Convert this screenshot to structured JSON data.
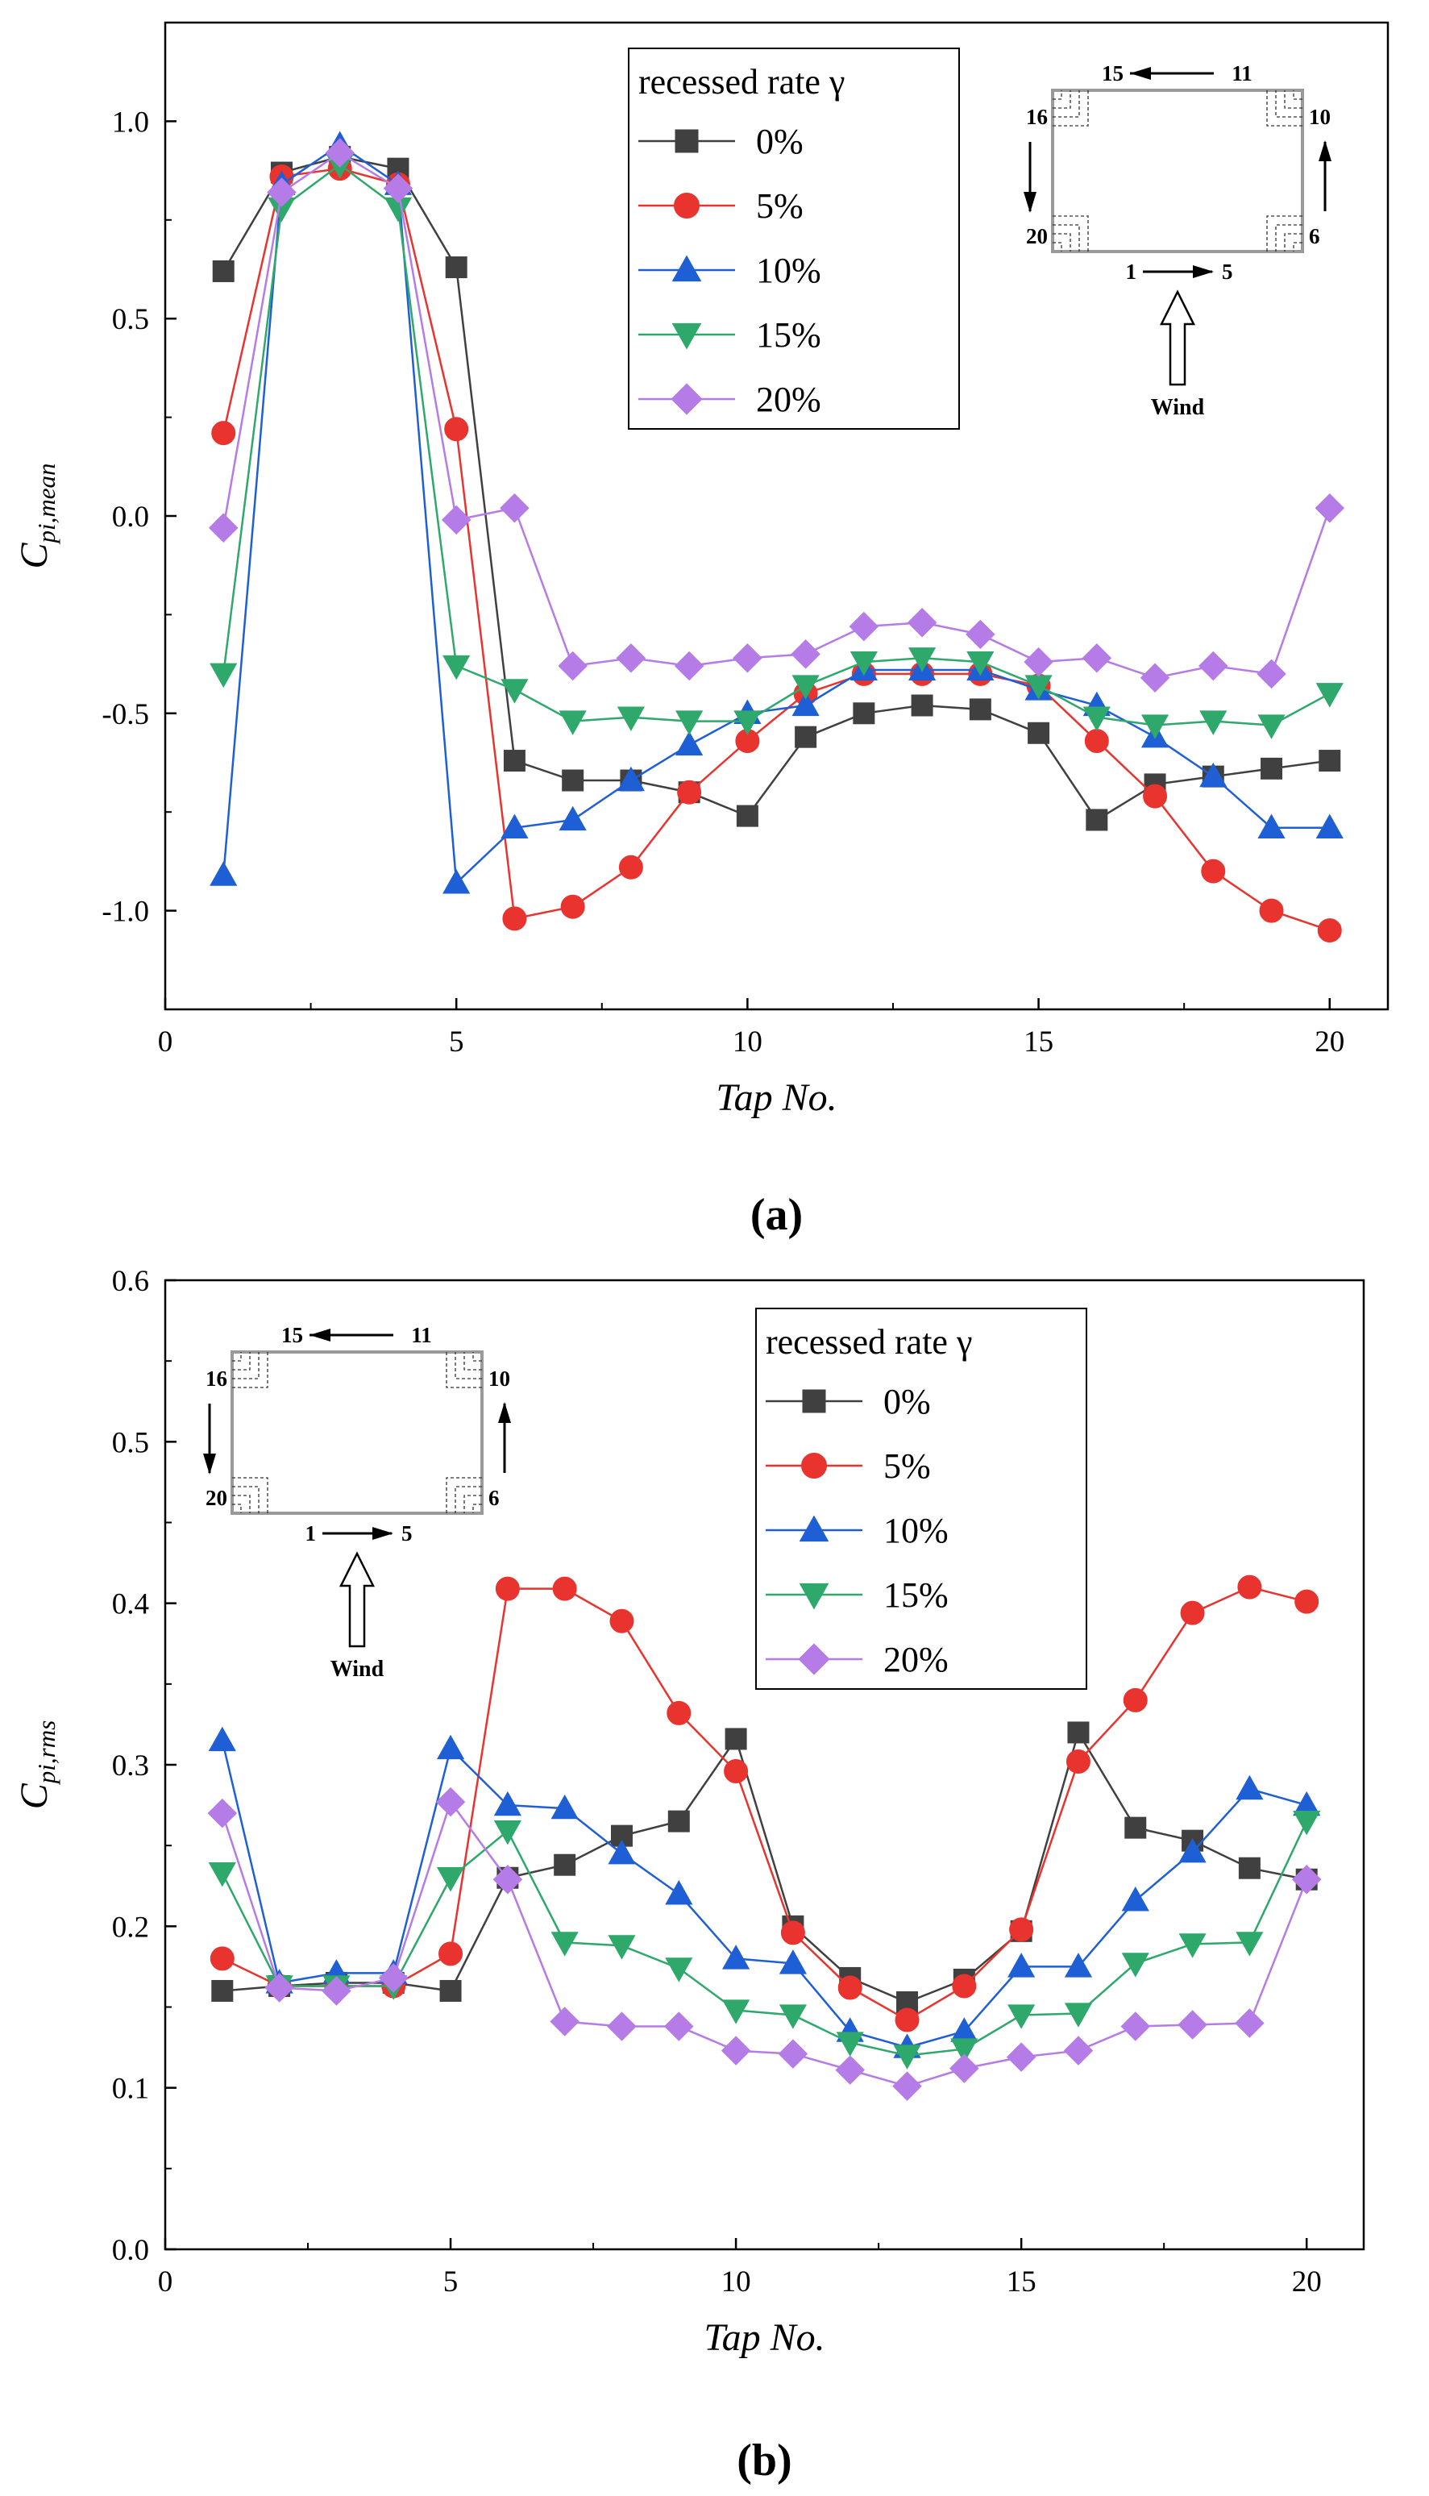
{
  "chart_data": [
    {
      "type": "line",
      "panel_label": "(a)",
      "xlabel": "Tap No.",
      "ylabel_main": "C",
      "ylabel_sub": "pi,mean",
      "xlim": [
        0,
        21
      ],
      "ylim": [
        -1.25,
        1.25
      ],
      "xticks": [
        0,
        5,
        10,
        15,
        20
      ],
      "xtick_labels": [
        "0",
        "5",
        "10",
        "15",
        "20"
      ],
      "yticks": [
        -1.0,
        -0.5,
        0.0,
        0.5,
        1.0
      ],
      "ytick_labels": [
        "-1.0",
        "-0.5",
        "0.0",
        "0.5",
        "1.0"
      ],
      "legend_title": "recessed rate γ",
      "legend_position": "top-center",
      "inset_position": "top-right",
      "x": [
        1,
        2,
        3,
        4,
        5,
        6,
        7,
        8,
        9,
        10,
        11,
        12,
        13,
        14,
        15,
        16,
        17,
        18,
        19,
        20
      ],
      "series": [
        {
          "name": "0%",
          "color": "#404040",
          "marker": "square",
          "values": [
            0.62,
            0.87,
            0.91,
            0.88,
            0.63,
            -0.62,
            -0.67,
            -0.67,
            -0.7,
            -0.76,
            -0.56,
            -0.5,
            -0.48,
            -0.49,
            -0.55,
            -0.77,
            -0.68,
            -0.66,
            -0.64,
            -0.62
          ]
        },
        {
          "name": "5%",
          "color": "#e8332e",
          "marker": "circle",
          "values": [
            0.21,
            0.86,
            0.88,
            0.84,
            0.22,
            -1.02,
            -0.99,
            -0.89,
            -0.7,
            -0.57,
            -0.45,
            -0.4,
            -0.4,
            -0.4,
            -0.43,
            -0.57,
            -0.71,
            -0.9,
            -1.0,
            -1.05
          ]
        },
        {
          "name": "10%",
          "color": "#1f5fd6",
          "marker": "triangle-up",
          "values": [
            -0.91,
            0.84,
            0.94,
            0.84,
            -0.93,
            -0.79,
            -0.77,
            -0.67,
            -0.58,
            -0.5,
            -0.48,
            -0.39,
            -0.39,
            -0.39,
            -0.44,
            -0.48,
            -0.56,
            -0.66,
            -0.79,
            -0.79
          ]
        },
        {
          "name": "15%",
          "color": "#2ea86b",
          "marker": "triangle-down",
          "values": [
            -0.4,
            0.78,
            0.89,
            0.78,
            -0.38,
            -0.44,
            -0.52,
            -0.51,
            -0.52,
            -0.52,
            -0.43,
            -0.37,
            -0.36,
            -0.37,
            -0.43,
            -0.51,
            -0.53,
            -0.52,
            -0.53,
            -0.45
          ]
        },
        {
          "name": "20%",
          "color": "#b57be6",
          "marker": "diamond",
          "values": [
            -0.03,
            0.82,
            0.92,
            0.83,
            -0.01,
            0.02,
            -0.38,
            -0.36,
            -0.38,
            -0.36,
            -0.35,
            -0.28,
            -0.27,
            -0.3,
            -0.37,
            -0.36,
            -0.41,
            -0.38,
            -0.4,
            0.02
          ]
        }
      ]
    },
    {
      "type": "line",
      "panel_label": "(b)",
      "xlabel": "Tap No.",
      "ylabel_main": "C",
      "ylabel_sub": "pi,rms",
      "xlim": [
        0,
        21
      ],
      "ylim": [
        0.0,
        0.6
      ],
      "xticks": [
        0,
        5,
        10,
        15,
        20
      ],
      "xtick_labels": [
        "0",
        "5",
        "10",
        "15",
        "20"
      ],
      "yticks": [
        0.0,
        0.1,
        0.2,
        0.3,
        0.4,
        0.5,
        0.6
      ],
      "ytick_labels": [
        "0.0",
        "0.1",
        "0.2",
        "0.3",
        "0.4",
        "0.5",
        "0.6"
      ],
      "legend_title": "recessed rate γ",
      "legend_position": "top-right",
      "inset_position": "top-left",
      "x": [
        1,
        2,
        3,
        4,
        5,
        6,
        7,
        8,
        9,
        10,
        11,
        12,
        13,
        14,
        15,
        16,
        17,
        18,
        19,
        20
      ],
      "series": [
        {
          "name": "0%",
          "color": "#404040",
          "marker": "square",
          "values": [
            0.16,
            0.163,
            0.165,
            0.165,
            0.16,
            0.23,
            0.238,
            0.256,
            0.265,
            0.316,
            0.2,
            0.168,
            0.153,
            0.167,
            0.197,
            0.32,
            0.261,
            0.253,
            0.236,
            0.229
          ]
        },
        {
          "name": "5%",
          "color": "#e8332e",
          "marker": "circle",
          "values": [
            0.18,
            0.163,
            0.163,
            0.163,
            0.183,
            0.409,
            0.409,
            0.389,
            0.332,
            0.296,
            0.196,
            0.162,
            0.142,
            0.163,
            0.198,
            0.302,
            0.34,
            0.394,
            0.41,
            0.401
          ]
        },
        {
          "name": "10%",
          "color": "#1f5fd6",
          "marker": "triangle-up",
          "values": [
            0.315,
            0.165,
            0.171,
            0.171,
            0.31,
            0.275,
            0.273,
            0.245,
            0.22,
            0.18,
            0.177,
            0.135,
            0.125,
            0.135,
            0.175,
            0.175,
            0.216,
            0.246,
            0.285,
            0.275
          ]
        },
        {
          "name": "15%",
          "color": "#2ea86b",
          "marker": "triangle-down",
          "values": [
            0.233,
            0.163,
            0.163,
            0.163,
            0.23,
            0.259,
            0.19,
            0.188,
            0.174,
            0.148,
            0.145,
            0.128,
            0.12,
            0.124,
            0.145,
            0.146,
            0.177,
            0.189,
            0.19,
            0.265
          ]
        },
        {
          "name": "20%",
          "color": "#b57be6",
          "marker": "diamond",
          "values": [
            0.27,
            0.162,
            0.16,
            0.168,
            0.277,
            0.229,
            0.141,
            0.138,
            0.138,
            0.123,
            0.121,
            0.111,
            0.101,
            0.112,
            0.119,
            0.123,
            0.138,
            0.139,
            0.14,
            0.229
          ]
        }
      ]
    }
  ],
  "inset": {
    "top_label_left": "15",
    "top_label_right": "11",
    "left_label_top": "16",
    "left_label_bottom": "20",
    "right_label_top": "10",
    "right_label_bottom": "6",
    "bottom_label_left": "1",
    "bottom_label_right": "5",
    "wind_label": "Wind"
  }
}
